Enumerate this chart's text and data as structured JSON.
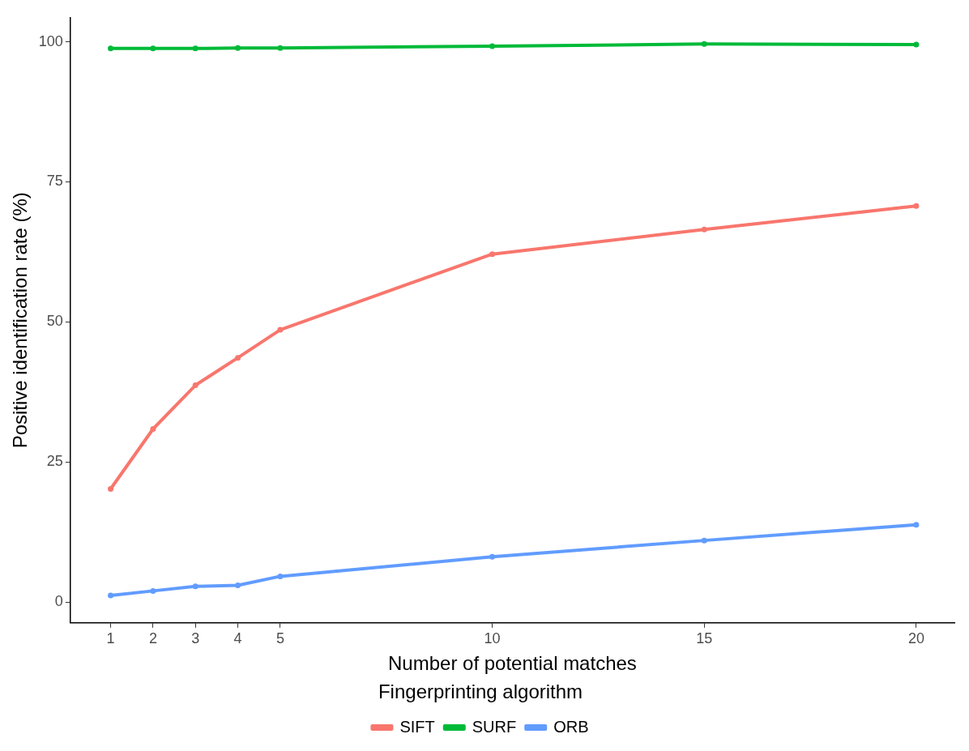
{
  "chart_data": {
    "type": "line",
    "xlabel": "Number of potential matches",
    "ylabel": "Positive identification rate (%)",
    "legend_title": "Fingerprinting algorithm",
    "x": [
      1,
      2,
      3,
      4,
      5,
      10,
      15,
      20
    ],
    "series": [
      {
        "name": "SIFT",
        "color": "#f8766d",
        "values": [
          20.2,
          30.9,
          38.7,
          43.6,
          48.6,
          62.1,
          66.5,
          70.7
        ]
      },
      {
        "name": "SURF",
        "color": "#00ba38",
        "values": [
          98.8,
          98.8,
          98.8,
          98.9,
          98.9,
          99.2,
          99.6,
          99.5
        ]
      },
      {
        "name": "ORB",
        "color": "#619cff",
        "values": [
          1.2,
          2.0,
          2.8,
          3.0,
          4.6,
          8.1,
          11.0,
          13.8
        ]
      }
    ],
    "xlim": [
      0.05,
      20.9
    ],
    "xticks": [
      1,
      2,
      3,
      4,
      5,
      10,
      15,
      20
    ],
    "ylim": [
      -3.7,
      104.3
    ],
    "yticks": [
      0,
      25,
      50,
      75,
      100
    ],
    "grid": false,
    "legend": "bottom",
    "marker": "circle",
    "line_style": "solid"
  }
}
